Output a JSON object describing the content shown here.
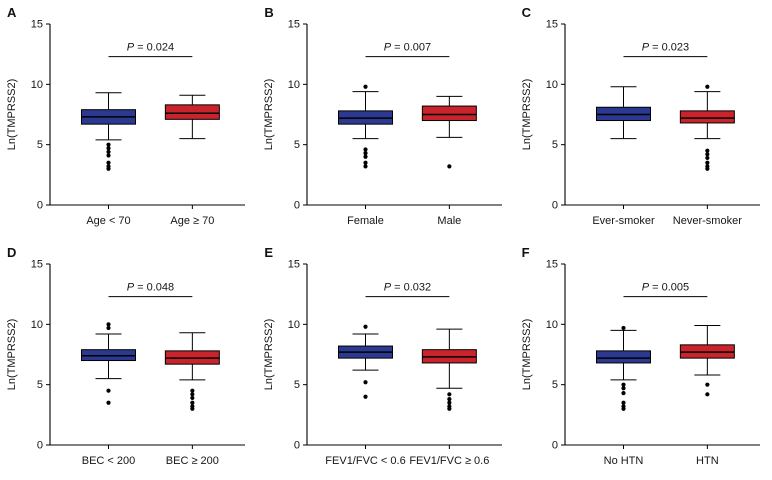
{
  "figure": {
    "ylabel": "Ln(TMPRSS2)",
    "ylim": [
      0,
      15
    ],
    "yticks": [
      0,
      5,
      10,
      15
    ],
    "colors": {
      "group_left": "#2b3a90",
      "group_right": "#c9242b",
      "axis": "#000000"
    }
  },
  "chart_data": [
    {
      "type": "box",
      "panel": "A",
      "p_label": "P = 0.024",
      "ylabel": "Ln(TMPRSS2)",
      "ylim": [
        0,
        15
      ],
      "yticks": [
        0,
        5,
        10,
        15
      ],
      "groups": [
        {
          "label": "Age < 70",
          "color": "#2b3a90",
          "whisker_low": 5.4,
          "q1": 6.7,
          "median": 7.3,
          "q3": 7.9,
          "whisker_high": 9.3,
          "outliers": [
            5.0,
            4.7,
            4.4,
            4.1,
            3.5,
            3.2,
            3.0
          ]
        },
        {
          "label": "Age ≥ 70",
          "color": "#c9242b",
          "whisker_low": 5.5,
          "q1": 7.1,
          "median": 7.6,
          "q3": 8.3,
          "whisker_high": 9.1,
          "outliers": []
        }
      ]
    },
    {
      "type": "box",
      "panel": "B",
      "p_label": "P = 0.007",
      "ylabel": "Ln(TMPRSS2)",
      "ylim": [
        0,
        15
      ],
      "yticks": [
        0,
        5,
        10,
        15
      ],
      "groups": [
        {
          "label": "Female",
          "color": "#2b3a90",
          "whisker_low": 5.5,
          "q1": 6.7,
          "median": 7.2,
          "q3": 7.8,
          "whisker_high": 9.4,
          "outliers": [
            9.8,
            4.6,
            4.3,
            4.0,
            3.5,
            3.2
          ]
        },
        {
          "label": "Male",
          "color": "#c9242b",
          "whisker_low": 5.6,
          "q1": 7.0,
          "median": 7.5,
          "q3": 8.2,
          "whisker_high": 9.0,
          "outliers": [
            3.2
          ]
        }
      ]
    },
    {
      "type": "box",
      "panel": "C",
      "p_label": "P = 0.023",
      "ylabel": "Ln(TMPRSS2)",
      "ylim": [
        0,
        15
      ],
      "yticks": [
        0,
        5,
        10,
        15
      ],
      "groups": [
        {
          "label": "Ever-smoker",
          "color": "#2b3a90",
          "whisker_low": 5.5,
          "q1": 7.0,
          "median": 7.5,
          "q3": 8.1,
          "whisker_high": 9.8,
          "outliers": []
        },
        {
          "label": "Never-smoker",
          "color": "#c9242b",
          "whisker_low": 5.5,
          "q1": 6.8,
          "median": 7.2,
          "q3": 7.8,
          "whisker_high": 9.4,
          "outliers": [
            9.8,
            4.5,
            4.2,
            3.9,
            3.5,
            3.2,
            3.0
          ]
        }
      ]
    },
    {
      "type": "box",
      "panel": "D",
      "p_label": "P = 0.048",
      "ylabel": "Ln(TMPRSS2)",
      "ylim": [
        0,
        15
      ],
      "yticks": [
        0,
        5,
        10,
        15
      ],
      "groups": [
        {
          "label": "BEC < 200",
          "color": "#2b3a90",
          "whisker_low": 5.5,
          "q1": 7.0,
          "median": 7.4,
          "q3": 7.9,
          "whisker_high": 9.2,
          "outliers": [
            10.0,
            9.7,
            4.5,
            3.5
          ]
        },
        {
          "label": "BEC ≥ 200",
          "color": "#c9242b",
          "whisker_low": 5.4,
          "q1": 6.7,
          "median": 7.2,
          "q3": 7.8,
          "whisker_high": 9.3,
          "outliers": [
            4.5,
            4.2,
            3.9,
            3.5,
            3.2,
            3.0
          ]
        }
      ]
    },
    {
      "type": "box",
      "panel": "E",
      "p_label": "P = 0.032",
      "ylabel": "Ln(TMPRSS2)",
      "ylim": [
        0,
        15
      ],
      "yticks": [
        0,
        5,
        10,
        15
      ],
      "groups": [
        {
          "label": "FEV1/FVC < 0.6",
          "color": "#2b3a90",
          "whisker_low": 6.2,
          "q1": 7.2,
          "median": 7.7,
          "q3": 8.2,
          "whisker_high": 9.2,
          "outliers": [
            9.8,
            5.2,
            4.0
          ]
        },
        {
          "label": "FEV1/FVC ≥ 0.6",
          "color": "#c9242b",
          "whisker_low": 4.7,
          "q1": 6.8,
          "median": 7.3,
          "q3": 7.9,
          "whisker_high": 9.6,
          "outliers": [
            4.2,
            3.8,
            3.5,
            3.2,
            3.0
          ]
        }
      ]
    },
    {
      "type": "box",
      "panel": "F",
      "p_label": "P = 0.005",
      "ylabel": "Ln(TMPRSS2)",
      "ylim": [
        0,
        15
      ],
      "yticks": [
        0,
        5,
        10,
        15
      ],
      "groups": [
        {
          "label": "No HTN",
          "color": "#2b3a90",
          "whisker_low": 5.4,
          "q1": 6.8,
          "median": 7.2,
          "q3": 7.8,
          "whisker_high": 9.5,
          "outliers": [
            9.7,
            5.0,
            4.7,
            4.3,
            3.5,
            3.2,
            3.0
          ]
        },
        {
          "label": "HTN",
          "color": "#c9242b",
          "whisker_low": 5.8,
          "q1": 7.2,
          "median": 7.7,
          "q3": 8.3,
          "whisker_high": 9.9,
          "outliers": [
            5.0,
            4.2
          ]
        }
      ]
    }
  ]
}
